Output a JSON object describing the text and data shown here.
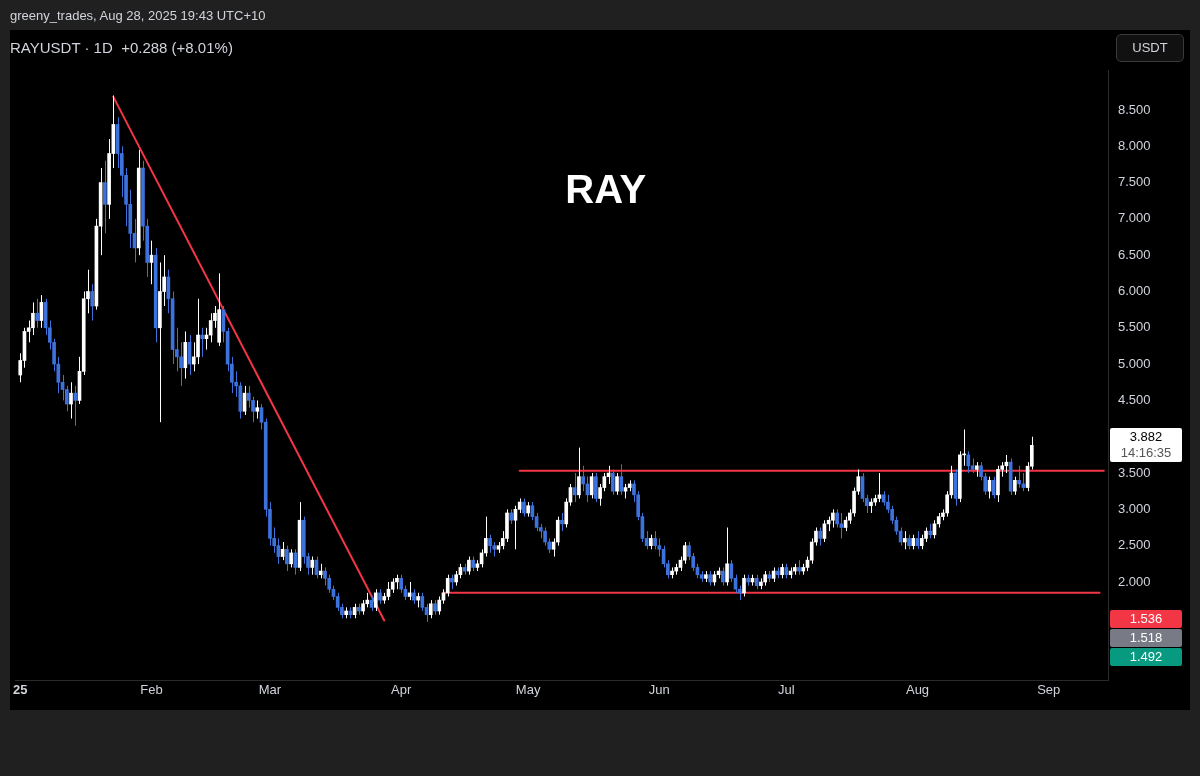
{
  "chart_data": {
    "type": "candlestick",
    "title": "RAYUSDT · 1D  +0.288 (+8.01%)",
    "subtitle": "RAY",
    "ylabel": "USDT",
    "annotations": [
      "greeny_trades, Aug 28, 2025 19:43 UTC+10",
      "3.882",
      "14:16:35",
      "1.536",
      "1.518",
      "1.492"
    ],
    "xlim": [
      "2024-12-31",
      "2025-09-15"
    ],
    "xticks": [
      {
        "value": "2025-01-01",
        "label": "25"
      },
      {
        "value": "2025-02-01",
        "label": "Feb"
      },
      {
        "value": "2025-03-01",
        "label": "Mar"
      },
      {
        "value": "2025-04-01",
        "label": "Apr"
      },
      {
        "value": "2025-05-01",
        "label": "May"
      },
      {
        "value": "2025-06-01",
        "label": "Jun"
      },
      {
        "value": "2025-07-01",
        "label": "Jul"
      },
      {
        "value": "2025-08-01",
        "label": "Aug"
      },
      {
        "value": "2025-09-01",
        "label": "Sep"
      }
    ],
    "ylim": [
      0.65,
      9.05
    ],
    "yticks": [
      {
        "value": 2,
        "label": "2.000"
      },
      {
        "value": 2.5,
        "label": "2.500"
      },
      {
        "value": 3,
        "label": "3.000"
      },
      {
        "value": 3.5,
        "label": "3.500"
      },
      {
        "value": 4.5,
        "label": "4.500"
      },
      {
        "value": 5,
        "label": "5.000"
      },
      {
        "value": 5.5,
        "label": "5.500"
      },
      {
        "value": 6,
        "label": "6.000"
      },
      {
        "value": 6.5,
        "label": "6.500"
      },
      {
        "value": 7,
        "label": "7.000"
      },
      {
        "value": 7.5,
        "label": "7.500"
      },
      {
        "value": 8,
        "label": "8.000"
      },
      {
        "value": 8.5,
        "label": "8.500"
      }
    ],
    "legend": false,
    "marker": "none",
    "x": [
      "2025-01-01",
      "2025-01-02",
      "2025-01-03",
      "2025-01-04",
      "2025-01-05",
      "2025-01-06",
      "2025-01-07",
      "2025-01-08",
      "2025-01-09",
      "2025-01-10",
      "2025-01-11",
      "2025-01-12",
      "2025-01-13",
      "2025-01-14",
      "2025-01-15",
      "2025-01-16",
      "2025-01-17",
      "2025-01-18",
      "2025-01-19",
      "2025-01-20",
      "2025-01-21",
      "2025-01-22",
      "2025-01-23",
      "2025-01-24",
      "2025-01-25",
      "2025-01-26",
      "2025-01-27",
      "2025-01-28",
      "2025-01-29",
      "2025-01-30",
      "2025-01-31",
      "2025-02-01",
      "2025-02-02",
      "2025-02-03",
      "2025-02-04",
      "2025-02-05",
      "2025-02-06",
      "2025-02-07",
      "2025-02-08",
      "2025-02-09",
      "2025-02-10",
      "2025-02-11",
      "2025-02-12",
      "2025-02-13",
      "2025-02-14",
      "2025-02-15",
      "2025-02-16",
      "2025-02-17",
      "2025-02-18",
      "2025-02-19",
      "2025-02-20",
      "2025-02-21",
      "2025-02-22",
      "2025-02-23",
      "2025-02-24",
      "2025-02-25",
      "2025-02-26",
      "2025-02-27",
      "2025-02-28",
      "2025-03-01",
      "2025-03-02",
      "2025-03-03",
      "2025-03-04",
      "2025-03-05",
      "2025-03-06",
      "2025-03-07",
      "2025-03-08",
      "2025-03-09",
      "2025-03-10",
      "2025-03-11",
      "2025-03-12",
      "2025-03-13",
      "2025-03-14",
      "2025-03-15",
      "2025-03-16",
      "2025-03-17",
      "2025-03-18",
      "2025-03-19",
      "2025-03-20",
      "2025-03-21",
      "2025-03-22",
      "2025-03-23",
      "2025-03-24",
      "2025-03-25",
      "2025-03-26",
      "2025-03-27",
      "2025-03-28",
      "2025-03-29",
      "2025-03-30",
      "2025-03-31",
      "2025-04-01",
      "2025-04-02",
      "2025-04-03",
      "2025-04-04",
      "2025-04-05",
      "2025-04-06",
      "2025-04-07",
      "2025-04-08",
      "2025-04-09",
      "2025-04-10",
      "2025-04-11",
      "2025-04-12",
      "2025-04-13",
      "2025-04-14",
      "2025-04-15",
      "2025-04-16",
      "2025-04-17",
      "2025-04-18",
      "2025-04-19",
      "2025-04-20",
      "2025-04-21",
      "2025-04-22",
      "2025-04-23",
      "2025-04-24",
      "2025-04-25",
      "2025-04-26",
      "2025-04-27",
      "2025-04-28",
      "2025-04-29",
      "2025-04-30",
      "2025-05-01",
      "2025-05-02",
      "2025-05-03",
      "2025-05-04",
      "2025-05-05",
      "2025-05-06",
      "2025-05-07",
      "2025-05-08",
      "2025-05-09",
      "2025-05-10",
      "2025-05-11",
      "2025-05-12",
      "2025-05-13",
      "2025-05-14",
      "2025-05-15",
      "2025-05-16",
      "2025-05-17",
      "2025-05-18",
      "2025-05-19",
      "2025-05-20",
      "2025-05-21",
      "2025-05-22",
      "2025-05-23",
      "2025-05-24",
      "2025-05-25",
      "2025-05-26",
      "2025-05-27",
      "2025-05-28",
      "2025-05-29",
      "2025-05-30",
      "2025-05-31",
      "2025-06-01",
      "2025-06-02",
      "2025-06-03",
      "2025-06-04",
      "2025-06-05",
      "2025-06-06",
      "2025-06-07",
      "2025-06-08",
      "2025-06-09",
      "2025-06-10",
      "2025-06-11",
      "2025-06-12",
      "2025-06-13",
      "2025-06-14",
      "2025-06-15",
      "2025-06-16",
      "2025-06-17",
      "2025-06-18",
      "2025-06-19",
      "2025-06-20",
      "2025-06-21",
      "2025-06-22",
      "2025-06-23",
      "2025-06-24",
      "2025-06-25",
      "2025-06-26",
      "2025-06-27",
      "2025-06-28",
      "2025-06-29",
      "2025-06-30",
      "2025-07-01",
      "2025-07-02",
      "2025-07-03",
      "2025-07-04",
      "2025-07-05",
      "2025-07-06",
      "2025-07-07",
      "2025-07-08",
      "2025-07-09",
      "2025-07-10",
      "2025-07-11",
      "2025-07-12",
      "2025-07-13",
      "2025-07-14",
      "2025-07-15",
      "2025-07-16",
      "2025-07-17",
      "2025-07-18",
      "2025-07-19",
      "2025-07-20",
      "2025-07-21",
      "2025-07-22",
      "2025-07-23",
      "2025-07-24",
      "2025-07-25",
      "2025-07-26",
      "2025-07-27",
      "2025-07-28",
      "2025-07-29",
      "2025-07-30",
      "2025-07-31",
      "2025-08-01",
      "2025-08-02",
      "2025-08-03",
      "2025-08-04",
      "2025-08-05",
      "2025-08-06",
      "2025-08-07",
      "2025-08-08",
      "2025-08-09",
      "2025-08-10",
      "2025-08-11",
      "2025-08-12",
      "2025-08-13",
      "2025-08-14",
      "2025-08-15",
      "2025-08-16",
      "2025-08-17",
      "2025-08-18",
      "2025-08-19",
      "2025-08-20",
      "2025-08-21",
      "2025-08-22",
      "2025-08-23",
      "2025-08-24",
      "2025-08-25",
      "2025-08-26",
      "2025-08-27",
      "2025-08-28"
    ],
    "ohlc": [
      [
        4.85,
        5.15,
        4.75,
        5.05
      ],
      [
        5.05,
        5.5,
        4.95,
        5.45
      ],
      [
        5.45,
        5.6,
        5.3,
        5.5
      ],
      [
        5.5,
        5.85,
        5.4,
        5.7
      ],
      [
        5.7,
        5.9,
        5.5,
        5.6
      ],
      [
        5.6,
        5.95,
        5.5,
        5.85
      ],
      [
        5.85,
        5.9,
        5.4,
        5.5
      ],
      [
        5.5,
        5.6,
        5.2,
        5.3
      ],
      [
        5.3,
        5.35,
        4.9,
        5.0
      ],
      [
        5.0,
        5.1,
        4.6,
        4.75
      ],
      [
        4.75,
        4.85,
        4.5,
        4.65
      ],
      [
        4.65,
        4.7,
        4.35,
        4.45
      ],
      [
        4.45,
        4.75,
        4.25,
        4.6
      ],
      [
        4.6,
        4.7,
        4.15,
        4.5
      ],
      [
        4.5,
        5.1,
        4.45,
        4.9
      ],
      [
        4.9,
        6.0,
        4.85,
        5.9
      ],
      [
        5.9,
        6.3,
        5.7,
        6.0
      ],
      [
        6.0,
        6.1,
        5.6,
        5.8
      ],
      [
        5.8,
        7.0,
        5.75,
        6.9
      ],
      [
        6.9,
        7.7,
        6.5,
        7.5
      ],
      [
        7.5,
        7.8,
        6.8,
        7.2
      ],
      [
        7.2,
        8.1,
        7.0,
        7.9
      ],
      [
        7.9,
        8.7,
        7.7,
        8.3
      ],
      [
        8.3,
        8.4,
        7.7,
        7.9
      ],
      [
        7.9,
        8.0,
        7.3,
        7.6
      ],
      [
        7.6,
        7.7,
        6.9,
        7.2
      ],
      [
        7.2,
        7.4,
        6.6,
        6.8
      ],
      [
        6.8,
        7.0,
        6.4,
        6.6
      ],
      [
        6.6,
        7.95,
        6.5,
        7.7
      ],
      [
        7.7,
        7.8,
        6.7,
        6.9
      ],
      [
        6.9,
        7.0,
        6.2,
        6.4
      ],
      [
        6.4,
        6.7,
        6.1,
        6.5
      ],
      [
        6.5,
        6.6,
        5.3,
        5.5
      ],
      [
        5.5,
        6.4,
        4.2,
        6.0
      ],
      [
        6.0,
        6.5,
        5.8,
        6.2
      ],
      [
        6.2,
        6.3,
        5.7,
        5.9
      ],
      [
        5.9,
        6.0,
        5.0,
        5.2
      ],
      [
        5.2,
        5.5,
        4.9,
        5.1
      ],
      [
        5.1,
        5.3,
        4.7,
        4.95
      ],
      [
        4.95,
        5.45,
        4.8,
        5.3
      ],
      [
        5.3,
        5.4,
        4.85,
        5.0
      ],
      [
        5.0,
        5.3,
        4.9,
        5.1
      ],
      [
        5.1,
        5.9,
        5.0,
        5.4
      ],
      [
        5.4,
        5.5,
        5.1,
        5.35
      ],
      [
        5.35,
        5.5,
        5.2,
        5.4
      ],
      [
        5.4,
        5.7,
        5.3,
        5.6
      ],
      [
        5.6,
        5.8,
        5.5,
        5.7
      ],
      [
        5.3,
        6.25,
        5.25,
        5.75
      ],
      [
        5.75,
        5.8,
        5.3,
        5.45
      ],
      [
        5.45,
        5.5,
        4.9,
        5.0
      ],
      [
        5.0,
        5.1,
        4.6,
        4.75
      ],
      [
        4.75,
        4.9,
        4.55,
        4.7
      ],
      [
        4.7,
        4.75,
        4.25,
        4.35
      ],
      [
        4.35,
        4.7,
        4.3,
        4.6
      ],
      [
        4.6,
        4.7,
        4.4,
        4.5
      ],
      [
        4.5,
        4.55,
        4.2,
        4.35
      ],
      [
        4.35,
        4.5,
        4.25,
        4.4
      ],
      [
        4.4,
        4.45,
        4.1,
        4.2
      ],
      [
        4.2,
        4.25,
        2.9,
        3.0
      ],
      [
        3.0,
        3.1,
        2.5,
        2.6
      ],
      [
        2.6,
        2.75,
        2.4,
        2.5
      ],
      [
        2.5,
        2.6,
        2.25,
        2.35
      ],
      [
        2.35,
        2.55,
        2.3,
        2.45
      ],
      [
        2.45,
        2.5,
        2.15,
        2.25
      ],
      [
        2.25,
        2.45,
        2.2,
        2.4
      ],
      [
        2.4,
        2.45,
        2.1,
        2.2
      ],
      [
        2.2,
        3.1,
        2.15,
        2.85
      ],
      [
        2.85,
        2.9,
        2.25,
        2.35
      ],
      [
        2.35,
        2.4,
        2.1,
        2.2
      ],
      [
        2.2,
        2.35,
        2.1,
        2.3
      ],
      [
        2.3,
        2.35,
        2.05,
        2.1
      ],
      [
        2.1,
        2.25,
        2.05,
        2.15
      ],
      [
        2.15,
        2.2,
        1.95,
        2.05
      ],
      [
        2.05,
        2.1,
        1.85,
        1.9
      ],
      [
        1.9,
        1.95,
        1.75,
        1.8
      ],
      [
        1.8,
        1.85,
        1.6,
        1.65
      ],
      [
        1.65,
        1.7,
        1.5,
        1.55
      ],
      [
        1.55,
        1.65,
        1.5,
        1.6
      ],
      [
        1.6,
        1.65,
        1.5,
        1.55
      ],
      [
        1.55,
        1.7,
        1.5,
        1.65
      ],
      [
        1.65,
        1.7,
        1.55,
        1.6
      ],
      [
        1.6,
        1.75,
        1.55,
        1.7
      ],
      [
        1.7,
        1.85,
        1.65,
        1.75
      ],
      [
        1.75,
        1.8,
        1.6,
        1.65
      ],
      [
        1.65,
        1.9,
        1.6,
        1.85
      ],
      [
        1.85,
        1.9,
        1.7,
        1.75
      ],
      [
        1.75,
        1.85,
        1.7,
        1.8
      ],
      [
        1.8,
        2.0,
        1.75,
        1.9
      ],
      [
        1.9,
        2.05,
        1.85,
        2.0
      ],
      [
        2.0,
        2.1,
        1.9,
        2.05
      ],
      [
        2.05,
        2.1,
        1.85,
        1.9
      ],
      [
        1.9,
        1.95,
        1.75,
        1.8
      ],
      [
        1.8,
        2.0,
        1.75,
        1.85
      ],
      [
        1.85,
        1.9,
        1.7,
        1.75
      ],
      [
        1.75,
        1.85,
        1.65,
        1.8
      ],
      [
        1.8,
        1.85,
        1.6,
        1.65
      ],
      [
        1.65,
        1.7,
        1.45,
        1.55
      ],
      [
        1.55,
        1.75,
        1.5,
        1.7
      ],
      [
        1.7,
        1.75,
        1.55,
        1.6
      ],
      [
        1.6,
        1.8,
        1.55,
        1.75
      ],
      [
        1.75,
        1.9,
        1.7,
        1.85
      ],
      [
        1.85,
        2.1,
        1.8,
        2.05
      ],
      [
        2.05,
        2.1,
        1.9,
        2.0
      ],
      [
        2.0,
        2.15,
        1.95,
        2.1
      ],
      [
        2.1,
        2.25,
        2.05,
        2.2
      ],
      [
        2.2,
        2.25,
        2.1,
        2.15
      ],
      [
        2.15,
        2.35,
        2.1,
        2.3
      ],
      [
        2.3,
        2.35,
        2.15,
        2.2
      ],
      [
        2.2,
        2.3,
        2.15,
        2.25
      ],
      [
        2.25,
        2.45,
        2.2,
        2.4
      ],
      [
        2.4,
        2.9,
        2.35,
        2.6
      ],
      [
        2.6,
        2.65,
        2.4,
        2.5
      ],
      [
        2.5,
        2.55,
        2.35,
        2.45
      ],
      [
        2.45,
        2.55,
        2.4,
        2.5
      ],
      [
        2.5,
        2.7,
        2.45,
        2.6
      ],
      [
        2.6,
        3.0,
        2.55,
        2.95
      ],
      [
        2.95,
        3.0,
        2.8,
        2.85
      ],
      [
        2.85,
        3.05,
        2.45,
        3.0
      ],
      [
        3.0,
        3.15,
        2.95,
        3.1
      ],
      [
        3.1,
        3.15,
        2.9,
        2.95
      ],
      [
        2.95,
        3.1,
        2.9,
        3.05
      ],
      [
        3.05,
        3.1,
        2.85,
        2.9
      ],
      [
        2.9,
        2.95,
        2.7,
        2.75
      ],
      [
        2.75,
        2.8,
        2.6,
        2.7
      ],
      [
        2.7,
        2.75,
        2.5,
        2.55
      ],
      [
        2.55,
        2.6,
        2.4,
        2.45
      ],
      [
        2.45,
        2.6,
        2.35,
        2.55
      ],
      [
        2.55,
        2.9,
        2.5,
        2.85
      ],
      [
        2.85,
        2.95,
        2.7,
        2.8
      ],
      [
        2.8,
        3.15,
        2.75,
        3.1
      ],
      [
        3.1,
        3.35,
        3.05,
        3.3
      ],
      [
        3.3,
        3.5,
        3.1,
        3.2
      ],
      [
        3.2,
        3.85,
        3.15,
        3.45
      ],
      [
        3.45,
        3.6,
        3.25,
        3.35
      ],
      [
        3.35,
        3.45,
        3.1,
        3.2
      ],
      [
        3.2,
        3.5,
        3.15,
        3.45
      ],
      [
        3.45,
        3.5,
        3.1,
        3.15
      ],
      [
        3.15,
        3.35,
        3.05,
        3.3
      ],
      [
        3.3,
        3.5,
        3.25,
        3.45
      ],
      [
        3.45,
        3.6,
        3.35,
        3.5
      ],
      [
        3.5,
        3.55,
        3.2,
        3.25
      ],
      [
        3.25,
        3.5,
        3.2,
        3.45
      ],
      [
        3.45,
        3.62,
        3.2,
        3.25
      ],
      [
        3.25,
        3.35,
        3.15,
        3.3
      ],
      [
        3.3,
        3.4,
        3.25,
        3.35
      ],
      [
        3.35,
        3.4,
        3.1,
        3.2
      ],
      [
        3.2,
        3.25,
        2.85,
        2.9
      ],
      [
        2.9,
        2.95,
        2.55,
        2.6
      ],
      [
        2.6,
        2.7,
        2.45,
        2.5
      ],
      [
        2.5,
        2.65,
        2.45,
        2.6
      ],
      [
        2.6,
        2.7,
        2.45,
        2.5
      ],
      [
        2.5,
        2.6,
        2.35,
        2.45
      ],
      [
        2.45,
        2.5,
        2.2,
        2.25
      ],
      [
        2.25,
        2.3,
        2.05,
        2.1
      ],
      [
        2.1,
        2.2,
        2.05,
        2.15
      ],
      [
        2.15,
        2.25,
        2.1,
        2.2
      ],
      [
        2.2,
        2.35,
        2.15,
        2.3
      ],
      [
        2.3,
        2.55,
        2.25,
        2.5
      ],
      [
        2.5,
        2.55,
        2.3,
        2.35
      ],
      [
        2.35,
        2.4,
        2.15,
        2.2
      ],
      [
        2.2,
        2.25,
        2.05,
        2.1
      ],
      [
        2.1,
        2.15,
        2.0,
        2.05
      ],
      [
        2.05,
        2.15,
        2.0,
        2.1
      ],
      [
        2.1,
        2.15,
        1.95,
        2.0
      ],
      [
        2.0,
        2.15,
        1.95,
        2.1
      ],
      [
        2.1,
        2.2,
        2.05,
        2.15
      ],
      [
        2.15,
        2.2,
        1.95,
        2.0
      ],
      [
        2.0,
        2.75,
        1.95,
        2.25
      ],
      [
        2.25,
        2.3,
        2.0,
        2.05
      ],
      [
        2.05,
        2.1,
        1.85,
        1.9
      ],
      [
        1.9,
        1.95,
        1.75,
        1.85
      ],
      [
        1.85,
        2.1,
        1.8,
        2.05
      ],
      [
        2.05,
        2.1,
        1.95,
        2.0
      ],
      [
        2.0,
        2.1,
        1.95,
        2.05
      ],
      [
        2.05,
        2.1,
        1.9,
        1.95
      ],
      [
        1.95,
        2.05,
        1.9,
        2.0
      ],
      [
        2.0,
        2.15,
        1.95,
        2.1
      ],
      [
        2.1,
        2.15,
        2.0,
        2.05
      ],
      [
        2.05,
        2.2,
        2.0,
        2.15
      ],
      [
        2.15,
        2.2,
        2.05,
        2.1
      ],
      [
        2.1,
        2.25,
        2.05,
        2.2
      ],
      [
        2.2,
        2.25,
        2.05,
        2.1
      ],
      [
        2.1,
        2.2,
        2.05,
        2.15
      ],
      [
        2.15,
        2.25,
        2.1,
        2.2
      ],
      [
        2.2,
        2.3,
        2.1,
        2.15
      ],
      [
        2.15,
        2.25,
        2.1,
        2.2
      ],
      [
        2.2,
        2.35,
        2.15,
        2.3
      ],
      [
        2.3,
        2.6,
        2.25,
        2.55
      ],
      [
        2.55,
        2.75,
        2.5,
        2.7
      ],
      [
        2.7,
        2.75,
        2.5,
        2.6
      ],
      [
        2.6,
        2.85,
        2.55,
        2.8
      ],
      [
        2.8,
        2.9,
        2.7,
        2.85
      ],
      [
        2.85,
        3.0,
        2.75,
        2.95
      ],
      [
        2.95,
        3.0,
        2.75,
        2.8
      ],
      [
        2.8,
        2.95,
        2.6,
        2.75
      ],
      [
        2.75,
        2.9,
        2.7,
        2.85
      ],
      [
        2.85,
        3.0,
        2.8,
        2.95
      ],
      [
        2.95,
        3.3,
        2.9,
        3.25
      ],
      [
        3.25,
        3.55,
        3.2,
        3.45
      ],
      [
        3.45,
        3.5,
        3.1,
        3.15
      ],
      [
        3.15,
        3.2,
        2.95,
        3.05
      ],
      [
        3.05,
        3.15,
        2.95,
        3.1
      ],
      [
        3.1,
        3.2,
        3.05,
        3.15
      ],
      [
        3.15,
        3.5,
        3.1,
        3.2
      ],
      [
        3.2,
        3.25,
        3.05,
        3.1
      ],
      [
        3.1,
        3.2,
        2.95,
        3.0
      ],
      [
        3.0,
        3.05,
        2.8,
        2.85
      ],
      [
        2.85,
        2.9,
        2.65,
        2.7
      ],
      [
        2.7,
        2.75,
        2.5,
        2.55
      ],
      [
        2.55,
        2.7,
        2.45,
        2.6
      ],
      [
        2.6,
        2.65,
        2.45,
        2.5
      ],
      [
        2.5,
        2.65,
        2.45,
        2.6
      ],
      [
        2.6,
        2.7,
        2.45,
        2.5
      ],
      [
        2.5,
        2.65,
        2.45,
        2.6
      ],
      [
        2.6,
        2.75,
        2.55,
        2.7
      ],
      [
        2.7,
        2.8,
        2.6,
        2.65
      ],
      [
        2.65,
        2.85,
        2.6,
        2.8
      ],
      [
        2.8,
        2.95,
        2.75,
        2.9
      ],
      [
        2.9,
        3.0,
        2.85,
        2.95
      ],
      [
        2.95,
        3.25,
        2.9,
        3.2
      ],
      [
        3.2,
        3.6,
        3.15,
        3.5
      ],
      [
        3.5,
        3.55,
        3.05,
        3.15
      ],
      [
        3.15,
        3.8,
        3.1,
        3.75
      ],
      [
        3.75,
        4.1,
        3.6,
        3.75
      ],
      [
        3.75,
        3.8,
        3.5,
        3.6
      ],
      [
        3.6,
        3.7,
        3.5,
        3.55
      ],
      [
        3.55,
        3.65,
        3.45,
        3.6
      ],
      [
        3.6,
        3.65,
        3.4,
        3.45
      ],
      [
        3.45,
        3.5,
        3.2,
        3.25
      ],
      [
        3.25,
        3.45,
        3.15,
        3.4
      ],
      [
        3.4,
        3.45,
        3.15,
        3.2
      ],
      [
        3.2,
        3.6,
        3.1,
        3.55
      ],
      [
        3.55,
        3.65,
        3.45,
        3.6
      ],
      [
        3.6,
        3.75,
        3.5,
        3.65
      ],
      [
        3.65,
        3.7,
        3.2,
        3.25
      ],
      [
        3.25,
        3.45,
        3.2,
        3.4
      ],
      [
        3.4,
        3.6,
        3.3,
        3.35
      ],
      [
        3.35,
        3.5,
        3.25,
        3.3
      ],
      [
        3.3,
        3.65,
        3.25,
        3.594
      ],
      [
        3.594,
        4.0,
        3.55,
        3.882
      ]
    ],
    "colors": [
      "#ffffff",
      "#ffffff",
      "#ffffff",
      "#ffffff",
      "#3d72dc",
      "#ffffff",
      "#3d72dc",
      "#3d72dc",
      "#3d72dc",
      "#3d72dc",
      "#3d72dc",
      "#3d72dc",
      "#ffffff",
      "#3d72dc",
      "#ffffff",
      "#ffffff",
      "#ffffff",
      "#3d72dc",
      "#ffffff",
      "#ffffff",
      "#3d72dc",
      "#ffffff",
      "#ffffff",
      "#3d72dc",
      "#3d72dc",
      "#3d72dc",
      "#3d72dc",
      "#3d72dc",
      "#ffffff",
      "#3d72dc",
      "#3d72dc",
      "#ffffff",
      "#3d72dc",
      "#ffffff",
      "#ffffff",
      "#3d72dc",
      "#3d72dc",
      "#3d72dc",
      "#3d72dc",
      "#ffffff",
      "#3d72dc",
      "#ffffff",
      "#ffffff",
      "#3d72dc",
      "#ffffff",
      "#ffffff",
      "#ffffff",
      "#ffffff",
      "#3d72dc",
      "#3d72dc",
      "#3d72dc",
      "#3d72dc",
      "#3d72dc",
      "#ffffff",
      "#3d72dc",
      "#3d72dc",
      "#ffffff",
      "#3d72dc",
      "#3d72dc",
      "#3d72dc",
      "#3d72dc",
      "#3d72dc",
      "#ffffff",
      "#3d72dc",
      "#ffffff",
      "#3d72dc",
      "#ffffff",
      "#3d72dc",
      "#3d72dc",
      "#ffffff",
      "#3d72dc",
      "#ffffff",
      "#3d72dc",
      "#3d72dc",
      "#3d72dc",
      "#3d72dc",
      "#3d72dc",
      "#ffffff",
      "#3d72dc",
      "#ffffff",
      "#3d72dc",
      "#ffffff",
      "#ffffff",
      "#3d72dc",
      "#ffffff",
      "#3d72dc",
      "#ffffff",
      "#ffffff",
      "#ffffff",
      "#ffffff",
      "#3d72dc",
      "#3d72dc",
      "#ffffff",
      "#3d72dc",
      "#ffffff",
      "#3d72dc",
      "#3d72dc",
      "#ffffff",
      "#3d72dc",
      "#ffffff",
      "#ffffff",
      "#ffffff",
      "#3d72dc",
      "#ffffff",
      "#ffffff",
      "#3d72dc",
      "#ffffff",
      "#3d72dc",
      "#ffffff",
      "#ffffff",
      "#ffffff",
      "#3d72dc",
      "#3d72dc",
      "#ffffff",
      "#ffffff",
      "#ffffff",
      "#3d72dc",
      "#ffffff",
      "#ffffff",
      "#3d72dc",
      "#ffffff",
      "#3d72dc",
      "#3d72dc",
      "#3d72dc",
      "#3d72dc",
      "#3d72dc",
      "#ffffff",
      "#ffffff",
      "#3d72dc",
      "#ffffff",
      "#ffffff",
      "#3d72dc",
      "#ffffff",
      "#3d72dc",
      "#3d72dc",
      "#ffffff",
      "#3d72dc",
      "#ffffff",
      "#ffffff",
      "#ffffff",
      "#3d72dc",
      "#ffffff",
      "#3d72dc",
      "#ffffff",
      "#ffffff",
      "#3d72dc",
      "#3d72dc",
      "#3d72dc",
      "#3d72dc",
      "#ffffff",
      "#3d72dc",
      "#3d72dc",
      "#3d72dc",
      "#3d72dc",
      "#ffffff",
      "#ffffff",
      "#ffffff",
      "#ffffff",
      "#3d72dc",
      "#3d72dc",
      "#3d72dc",
      "#3d72dc",
      "#ffffff",
      "#3d72dc",
      "#ffffff",
      "#ffffff",
      "#3d72dc",
      "#ffffff",
      "#3d72dc",
      "#3d72dc",
      "#3d72dc",
      "#ffffff",
      "#3d72dc",
      "#ffffff",
      "#3d72dc",
      "#ffffff",
      "#ffffff",
      "#3d72dc",
      "#ffffff",
      "#3d72dc",
      "#ffffff",
      "#3d72dc",
      "#ffffff",
      "#ffffff",
      "#3d72dc",
      "#ffffff",
      "#ffffff",
      "#ffffff",
      "#ffffff",
      "#3d72dc",
      "#ffffff",
      "#ffffff",
      "#ffffff",
      "#3d72dc",
      "#3d72dc",
      "#ffffff",
      "#ffffff",
      "#ffffff",
      "#ffffff",
      "#3d72dc",
      "#3d72dc",
      "#ffffff",
      "#ffffff",
      "#ffffff",
      "#3d72dc",
      "#3d72dc",
      "#3d72dc",
      "#3d72dc",
      "#3d72dc",
      "#ffffff",
      "#3d72dc",
      "#ffffff",
      "#3d72dc",
      "#ffffff",
      "#ffffff",
      "#3d72dc",
      "#ffffff",
      "#ffffff",
      "#ffffff",
      "#ffffff",
      "#ffffff",
      "#3d72dc",
      "#ffffff",
      "#ffffff",
      "#3d72dc",
      "#3d72dc",
      "#ffffff",
      "#3d72dc",
      "#3d72dc",
      "#ffffff",
      "#3d72dc",
      "#ffffff",
      "#ffffff",
      "#ffffff",
      "#3d72dc",
      "#ffffff",
      "#3d72dc",
      "#3d72dc",
      "#ffffff",
      "#ffffff"
    ],
    "series": [
      {
        "type": "line",
        "color": "#f23645",
        "x": [
          "2025-01-23",
          "2025-03-28"
        ],
        "values": [
          8.68,
          1.47
        ]
      },
      {
        "type": "line",
        "color": "#f23645",
        "x": [
          "2025-04-29",
          "2025-09-14"
        ],
        "values": [
          3.53,
          3.53
        ]
      },
      {
        "type": "line",
        "color": "#f23645",
        "x": [
          "2025-04-11",
          "2025-09-13"
        ],
        "values": [
          1.85,
          1.85
        ]
      }
    ]
  }
}
